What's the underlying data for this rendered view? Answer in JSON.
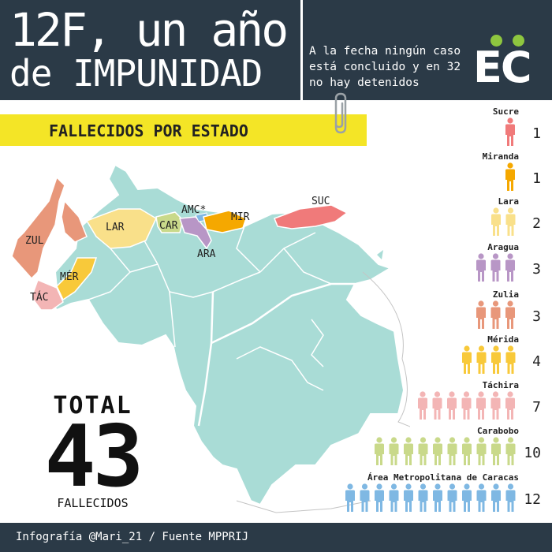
{
  "header": {
    "title_line1": "12F, un año",
    "title_line2": "de IMPUNIDAD",
    "subtitle": "A la fecha ningún caso está concluido y en 32 no hay detenidos",
    "logo_text": "EC"
  },
  "banner": {
    "text": "FALLECIDOS POR ESTADO"
  },
  "map": {
    "labels": {
      "zul": "ZUL",
      "lar": "LAR",
      "car": "CAR",
      "amc": "AMC*",
      "mir": "MIR",
      "ara": "ARA",
      "suc": "SUC",
      "mer": "MÉR",
      "tac": "TÁC"
    }
  },
  "total": {
    "label": "TOTAL",
    "number": "43",
    "sublabel": "FALLECIDOS"
  },
  "legend": [
    {
      "name": "Sucre",
      "count": "1",
      "color": "#f07a7a"
    },
    {
      "name": "Miranda",
      "count": "1",
      "color": "#f5a800"
    },
    {
      "name": "Lara",
      "count": "2",
      "color": "#f9e08a"
    },
    {
      "name": "Aragua",
      "count": "3",
      "color": "#b896c6"
    },
    {
      "name": "Zulia",
      "count": "3",
      "color": "#e8977a"
    },
    {
      "name": "Mérida",
      "count": "4",
      "color": "#f8c93a"
    },
    {
      "name": "Táchira",
      "count": "7",
      "color": "#f3b5b5"
    },
    {
      "name": "Carabobo",
      "count": "10",
      "color": "#c9d98a"
    },
    {
      "name": "Área Metropolitana de Caracas",
      "count": "12",
      "color": "#7fb8e3"
    }
  ],
  "footer": {
    "text": "Infografía @Mari_21 / Fuente MPPRIJ"
  },
  "colors": {
    "header_bg": "#2b3a47",
    "banner_bg": "#f4e526",
    "map_base": "#a9dcd6",
    "logo_dots": "#8ec63f"
  }
}
